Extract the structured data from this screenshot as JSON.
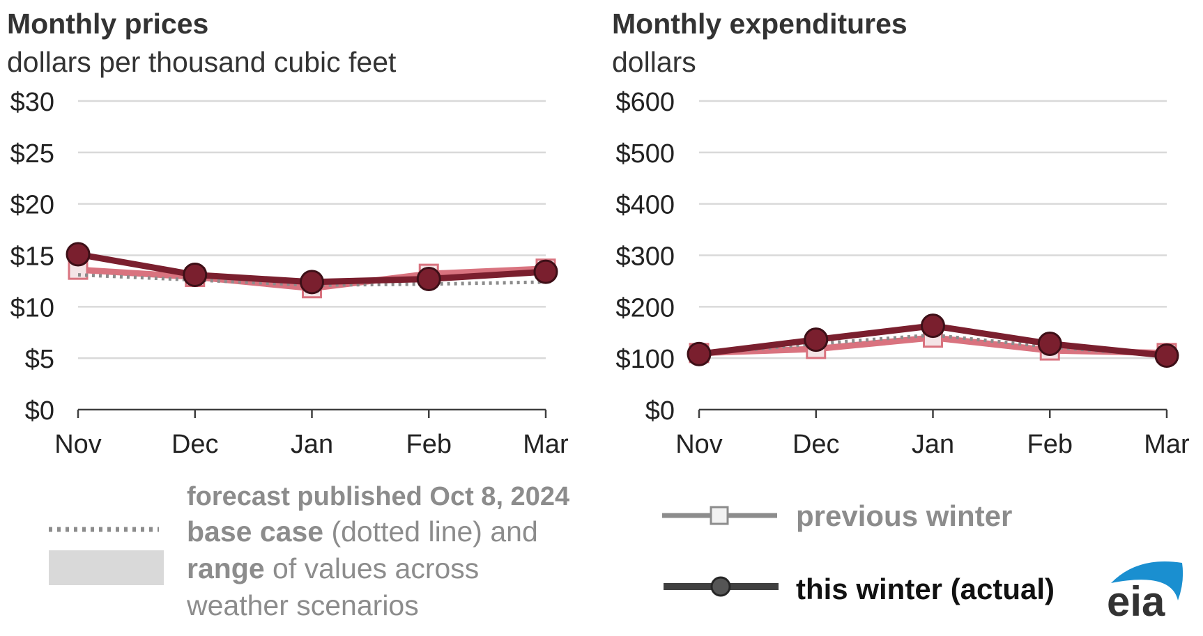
{
  "colors": {
    "this_winter": "#7a1f2e",
    "previous_winter": "#d9737f",
    "base_case": "#8c8c8c",
    "range_fill": "#d9d9d9",
    "grid": "#d9d9d9",
    "axis": "#404040",
    "text_dark": "#333333",
    "legend_gray": "#8c8c8c",
    "eia_blue": "#1a8fd0"
  },
  "chart_data": [
    {
      "type": "line",
      "title": "Monthly prices",
      "subtitle": "dollars per thousand cubic feet",
      "categories": [
        "Nov",
        "Dec",
        "Jan",
        "Feb",
        "Mar"
      ],
      "y_ticks": [
        "$0",
        "$5",
        "$10",
        "$15",
        "$20",
        "$25",
        "$30"
      ],
      "ylim": [
        0,
        30
      ],
      "grid": true,
      "series": [
        {
          "name": "previous winter",
          "values": [
            13.6,
            12.9,
            11.8,
            13.2,
            13.7
          ]
        },
        {
          "name": "base case",
          "values": [
            13.1,
            12.6,
            12.1,
            12.2,
            12.4
          ]
        },
        {
          "name": "this winter (actual)",
          "values": [
            15.1,
            13.1,
            12.4,
            12.7,
            13.4
          ]
        }
      ]
    },
    {
      "type": "line",
      "title": "Monthly expenditures",
      "subtitle": "dollars",
      "categories": [
        "Nov",
        "Dec",
        "Jan",
        "Feb",
        "Mar"
      ],
      "y_ticks": [
        "$0",
        "$100",
        "$200",
        "$300",
        "$400",
        "$500",
        "$600"
      ],
      "ylim": [
        0,
        600
      ],
      "grid": true,
      "series": [
        {
          "name": "previous winter",
          "values": [
            110,
            118,
            140,
            115,
            110
          ]
        },
        {
          "name": "base case",
          "values": [
            108,
            128,
            145,
            122,
            104
          ]
        },
        {
          "name": "this winter (actual)",
          "values": [
            108,
            136,
            163,
            128,
            105
          ]
        }
      ]
    }
  ],
  "legend": {
    "forecast_heading": "forecast published Oct 8, 2024",
    "base_case_bold": "base case",
    "base_case_rest": " (dotted line) and",
    "range_bold": "range",
    "range_rest": " of values across",
    "range_line2": "weather scenarios",
    "previous_winter": "previous winter",
    "this_winter": "this winter (actual)"
  },
  "logo": {
    "text": "eia"
  }
}
